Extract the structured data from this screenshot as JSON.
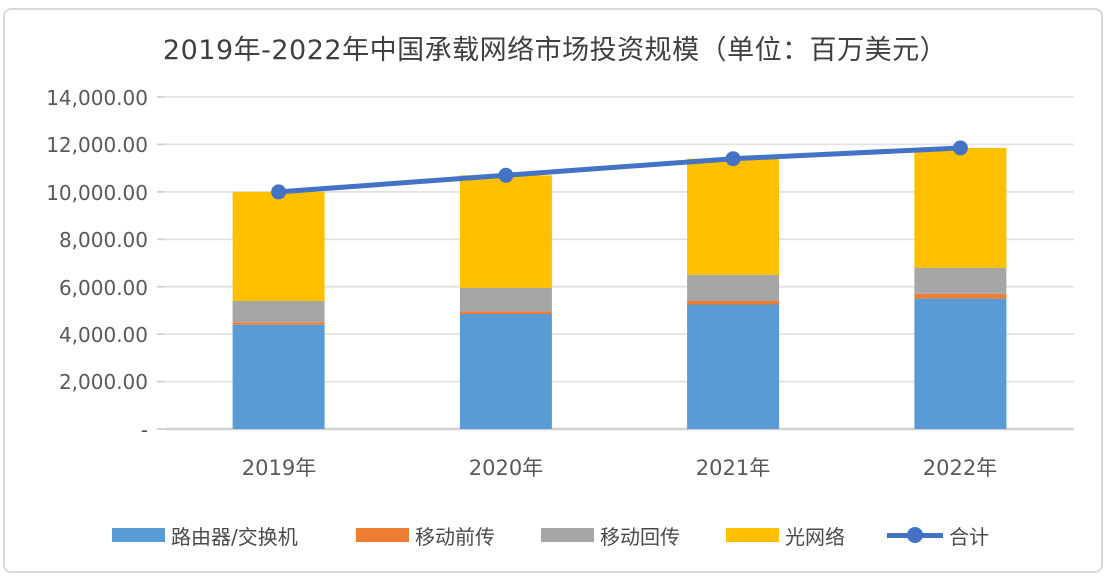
{
  "chart_data": {
    "type": "bar",
    "subtype": "stacked-bar-with-line",
    "title": "2019年-2022年中国承载网络市场投资规模（单位：百万美元）",
    "categories": [
      "2019年",
      "2020年",
      "2021年",
      "2022年"
    ],
    "series": [
      {
        "name": "路由器/交换机",
        "kind": "bar",
        "color": "#5B9BD5",
        "values": [
          4400,
          4850,
          5250,
          5500
        ]
      },
      {
        "name": "移动前传",
        "kind": "bar",
        "color": "#ED7D31",
        "values": [
          100,
          100,
          150,
          200
        ]
      },
      {
        "name": "移动回传",
        "kind": "bar",
        "color": "#A6A6A6",
        "values": [
          900,
          1000,
          1100,
          1100
        ]
      },
      {
        "name": "光网络",
        "kind": "bar",
        "color": "#FFC000",
        "values": [
          4600,
          4750,
          4900,
          5050
        ]
      }
    ],
    "line_series": {
      "name": "合计",
      "kind": "line",
      "color": "#4472C4",
      "values": [
        10000,
        10700,
        11400,
        11850
      ]
    },
    "stacked": true,
    "grid": true,
    "legend_position": "bottom",
    "y_axis": {
      "min": 0,
      "max": 14000,
      "step": 2000,
      "tick_labels_top_to_bottom": [
        "14,000.00",
        "12,000.00",
        "10,000.00",
        "8,000.00",
        "6,000.00",
        "4,000.00",
        "2,000.00",
        "-"
      ]
    },
    "colors": {
      "gridline": "#e2e2e2",
      "axis_line": "#d2d2d2",
      "title_text": "#404040",
      "axis_text": "#595959",
      "frame_border": "#d9d9d9"
    }
  }
}
